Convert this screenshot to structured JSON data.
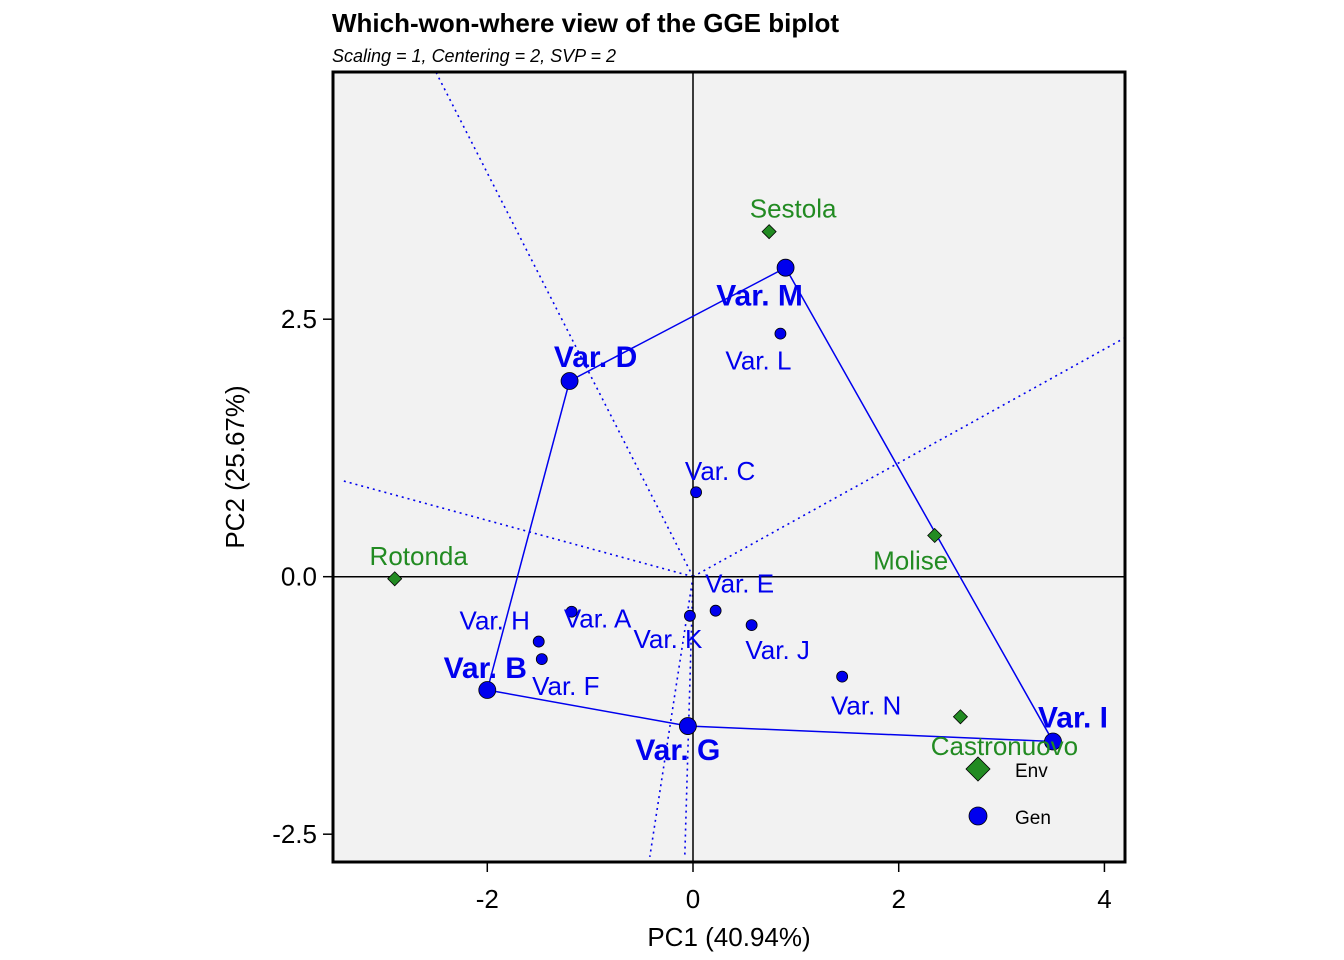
{
  "chart_data": {
    "type": "scatter",
    "title": "Which-won-where view of the GGE biplot",
    "subtitle": "Scaling = 1, Centering = 2, SVP = 2",
    "xlabel": "PC1 (40.94%)",
    "ylabel": "PC2 (25.67%)",
    "xlim": [
      -3.5,
      4.2
    ],
    "ylim": [
      -2.77,
      4.9
    ],
    "xticks": [
      -2,
      0,
      2,
      4
    ],
    "xtick_labels": [
      "-2",
      "0",
      "2",
      "4"
    ],
    "yticks": [
      -2.5,
      0.0,
      2.5
    ],
    "ytick_labels": [
      "-2.5",
      "0.0",
      "2.5"
    ],
    "colors": {
      "gen": "#0000ee",
      "env": "#228b22",
      "panel": "#f2f2f2"
    },
    "genotypes": [
      {
        "name": "Var. A",
        "x": -1.18,
        "y": -0.34,
        "vertex": false
      },
      {
        "name": "Var. B",
        "x": -2.0,
        "y": -1.1,
        "vertex": true
      },
      {
        "name": "Var. C",
        "x": 0.03,
        "y": 0.82,
        "vertex": false
      },
      {
        "name": "Var. D",
        "x": -1.2,
        "y": 1.9,
        "vertex": true
      },
      {
        "name": "Var. E",
        "x": 0.22,
        "y": -0.33,
        "vertex": false
      },
      {
        "name": "Var. F",
        "x": -1.47,
        "y": -0.8,
        "vertex": false
      },
      {
        "name": "Var. G",
        "x": -0.05,
        "y": -1.45,
        "vertex": true
      },
      {
        "name": "Var. H",
        "x": -1.5,
        "y": -0.63,
        "vertex": false
      },
      {
        "name": "Var. I",
        "x": 3.5,
        "y": -1.6,
        "vertex": true
      },
      {
        "name": "Var. J",
        "x": 0.57,
        "y": -0.47,
        "vertex": false
      },
      {
        "name": "Var. K",
        "x": -0.03,
        "y": -0.38,
        "vertex": false
      },
      {
        "name": "Var. L",
        "x": 0.85,
        "y": 2.36,
        "vertex": false
      },
      {
        "name": "Var. M",
        "x": 0.9,
        "y": 3.0,
        "vertex": true
      },
      {
        "name": "Var. N",
        "x": 1.45,
        "y": -0.97,
        "vertex": false
      }
    ],
    "environments": [
      {
        "name": "Sestola",
        "x": 0.74,
        "y": 3.35
      },
      {
        "name": "Rotonda",
        "x": -2.9,
        "y": -0.02
      },
      {
        "name": "Molise",
        "x": 2.35,
        "y": 0.4
      },
      {
        "name": "Castronuovo",
        "x": 2.6,
        "y": -1.36
      }
    ],
    "polygon_order": [
      "Var. M",
      "Var. I",
      "Var. G",
      "Var. B",
      "Var. D"
    ],
    "sector_rays": [
      {
        "dx": -2.5,
        "dy": 4.9
      },
      {
        "dx": 4.2,
        "dy": 2.32
      },
      {
        "dx": -0.42,
        "dy": -2.72
      },
      {
        "dx": -0.08,
        "dy": -2.72
      },
      {
        "dx": -3.4,
        "dy": 0.93
      }
    ],
    "legend": {
      "position": "bottom-right",
      "entries": [
        {
          "label": "Env",
          "shape": "diamond"
        },
        {
          "label": "Gen",
          "shape": "circle"
        }
      ]
    }
  }
}
